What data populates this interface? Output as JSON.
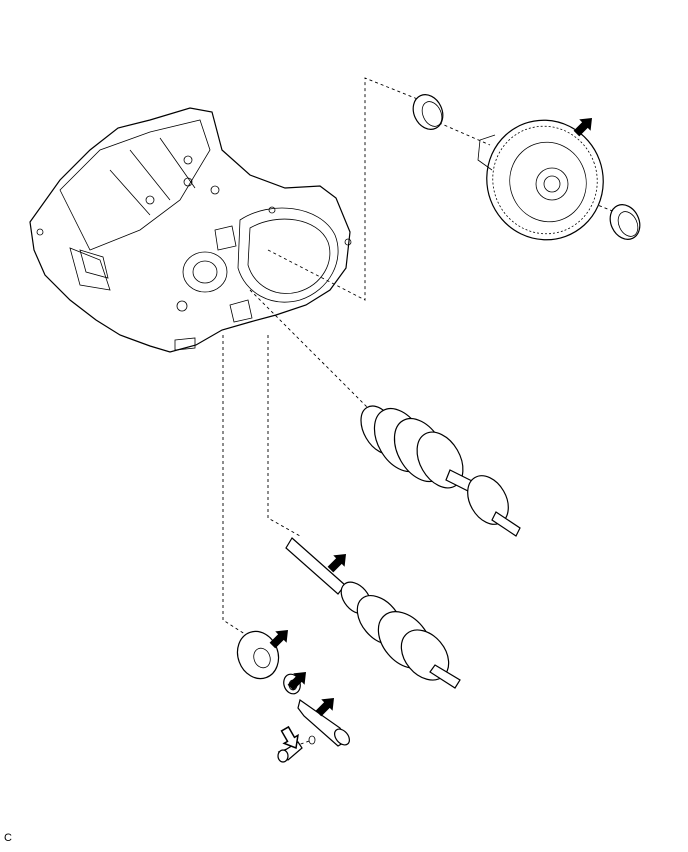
{
  "figure": {
    "code": "C",
    "colors": {
      "line": "#000000",
      "background": "#ffffff"
    },
    "parts": [
      {
        "name": "transaxle-case"
      },
      {
        "name": "differential-assembly",
        "marked": true
      },
      {
        "name": "differential-bearing-outer-race-left"
      },
      {
        "name": "differential-bearing-outer-race-right"
      },
      {
        "name": "output-shaft-assembly"
      },
      {
        "name": "input-shaft-assembly",
        "marked": true
      },
      {
        "name": "reverse-idler-gear",
        "marked": true
      },
      {
        "name": "thrust-washer",
        "marked": true
      },
      {
        "name": "reverse-idler-shaft",
        "marked": true
      },
      {
        "name": "o-ring"
      },
      {
        "name": "bolt",
        "marked_outline": true
      }
    ],
    "arrow_icons": [
      "solid-arrow-icon",
      "solid-arrow-icon",
      "solid-arrow-icon",
      "solid-arrow-icon",
      "solid-arrow-icon",
      "outline-arrow-icon"
    ]
  }
}
